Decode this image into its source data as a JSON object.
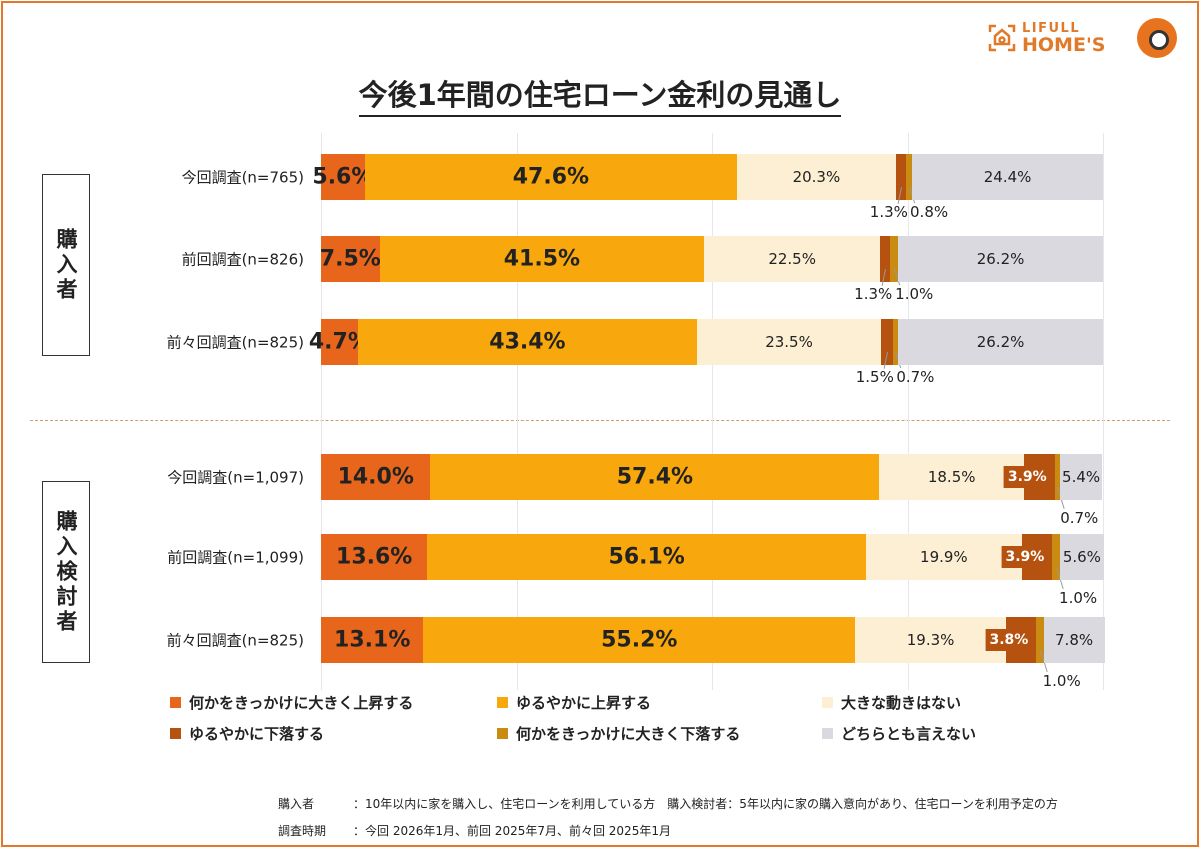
{
  "logo": {
    "text_top": "LIFULL",
    "text_bottom": "HOME'S"
  },
  "chart_data": {
    "type": "bar",
    "orientation": "horizontal-stacked-100",
    "title": "今後1年間の住宅ローン金利の見通し",
    "xlim": [
      0,
      100
    ],
    "grid": true,
    "legend_position": "bottom",
    "series": [
      {
        "name": "何かをきっかけに大きく上昇する",
        "color": "#E8661C"
      },
      {
        "name": "ゆるやかに上昇する",
        "color": "#F8A80C"
      },
      {
        "name": "大きな動きはない",
        "color": "#FDEFD3"
      },
      {
        "name": "ゆるやかに下落する",
        "color": "#B5520F"
      },
      {
        "name": "何かをきっかけに大きく下落する",
        "color": "#C98B12"
      },
      {
        "name": "どちらとも言えない",
        "color": "#D9D9DF"
      }
    ],
    "groups": [
      {
        "label": "購入者",
        "rows": [
          {
            "label": "今回調査(n=765)",
            "values": [
              5.6,
              47.6,
              20.3,
              1.3,
              0.8,
              24.4
            ]
          },
          {
            "label": "前回調査(n=826)",
            "values": [
              7.5,
              41.5,
              22.5,
              1.3,
              1.0,
              26.2
            ]
          },
          {
            "label": "前々回調査(n=825)",
            "values": [
              4.7,
              43.4,
              23.5,
              1.5,
              0.7,
              26.2
            ]
          }
        ]
      },
      {
        "label": "購入検討者",
        "rows": [
          {
            "label": "今回調査(n=1,097)",
            "values": [
              14.0,
              57.4,
              18.5,
              3.9,
              0.7,
              5.4
            ]
          },
          {
            "label": "前回調査(n=1,099)",
            "values": [
              13.6,
              56.1,
              19.9,
              3.9,
              1.0,
              5.6
            ]
          },
          {
            "label": "前々回調査(n=825)",
            "values": [
              13.1,
              55.2,
              19.3,
              3.8,
              1.0,
              7.8
            ]
          }
        ]
      }
    ]
  },
  "notes": [
    {
      "key": "購入者",
      "text": "：10年以内に家を購入し、住宅ローンを利用している方　購入検討者：5年以内に家の購入意向があり、住宅ローンを利用予定の方"
    },
    {
      "key": "調査時期",
      "text": "：今回 2026年1月、前回 2025年7月、前々回 2025年1月"
    }
  ]
}
